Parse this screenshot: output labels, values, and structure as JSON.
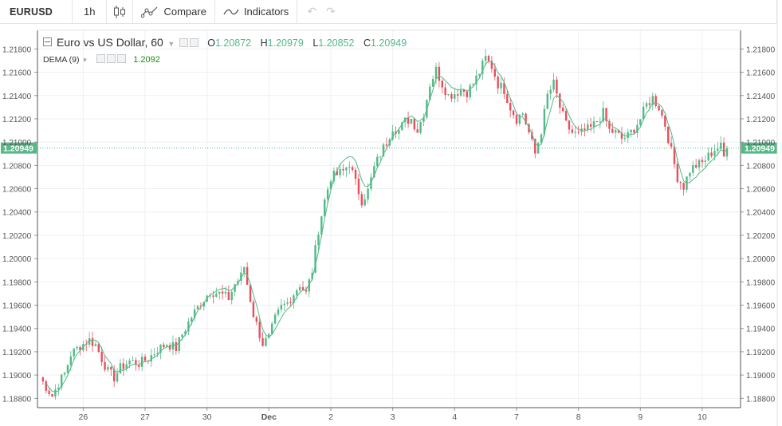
{
  "toolbar": {
    "symbol": "EURUSD",
    "interval": "1h",
    "compare_label": "Compare",
    "indicators_label": "Indicators",
    "icons": [
      "candlestick-icon",
      "compare-icon",
      "indicators-icon",
      "undo-icon",
      "redo-icon"
    ]
  },
  "legend": {
    "title": "Euro vs US Dollar, 60",
    "o_label": "O",
    "o_value": "1.20872",
    "h_label": "H",
    "h_value": "1.20979",
    "l_label": "L",
    "l_value": "1.20852",
    "c_label": "C",
    "c_value": "1.20949",
    "indicator_name": "DEMA (9)",
    "indicator_value": "1.2092"
  },
  "colors": {
    "up": "#53b987",
    "down": "#eb4d5c",
    "dema": "#53b987",
    "last_price_bg": "#53b987",
    "grid": "#eef0f2"
  },
  "chart_data": {
    "type": "candlestick",
    "title": "Euro vs US Dollar, 60",
    "y_ticks": [
      "1.21800",
      "1.21600",
      "1.21400",
      "1.21200",
      "1.21000",
      "1.20800",
      "1.20600",
      "1.20400",
      "1.20200",
      "1.20000",
      "1.19800",
      "1.19600",
      "1.19400",
      "1.19200",
      "1.19000",
      "1.18800"
    ],
    "ylim": [
      1.1872,
      1.2196
    ],
    "x_ticks": [
      "26",
      "27",
      "30",
      "Dec",
      "2",
      "3",
      "4",
      "7",
      "8",
      "9",
      "10"
    ],
    "last_price": 1.20949,
    "last_price_label": "1.20949",
    "grid": true,
    "close_path": [
      [
        0,
        1.1898
      ],
      [
        2,
        1.189
      ],
      [
        4,
        1.1882
      ],
      [
        6,
        1.1893
      ],
      [
        8,
        1.1901
      ],
      [
        10,
        1.1918
      ],
      [
        13,
        1.1925
      ],
      [
        16,
        1.193
      ],
      [
        18,
        1.1926
      ],
      [
        20,
        1.1914
      ],
      [
        22,
        1.1903
      ],
      [
        24,
        1.1898
      ],
      [
        26,
        1.1906
      ],
      [
        29,
        1.1912
      ],
      [
        32,
        1.191
      ],
      [
        35,
        1.1914
      ],
      [
        38,
        1.1922
      ],
      [
        41,
        1.1927
      ],
      [
        44,
        1.1923
      ],
      [
        46,
        1.1935
      ],
      [
        49,
        1.195
      ],
      [
        52,
        1.1962
      ],
      [
        55,
        1.1972
      ],
      [
        58,
        1.197
      ],
      [
        61,
        1.1966
      ],
      [
        63,
        1.1978
      ],
      [
        65,
        1.1985
      ],
      [
        66,
        1.1993
      ],
      [
        67,
        1.1978
      ],
      [
        69,
        1.1952
      ],
      [
        71,
        1.1935
      ],
      [
        72,
        1.1927
      ],
      [
        74,
        1.1932
      ],
      [
        76,
        1.1948
      ],
      [
        78,
        1.1958
      ],
      [
        80,
        1.1962
      ],
      [
        82,
        1.197
      ],
      [
        84,
        1.1978
      ],
      [
        86,
        1.197
      ],
      [
        88,
        1.199
      ],
      [
        90,
        1.2025
      ],
      [
        92,
        1.205
      ],
      [
        94,
        1.207
      ],
      [
        96,
        1.2072
      ],
      [
        98,
        1.2075
      ],
      [
        100,
        1.2082
      ],
      [
        102,
        1.2065
      ],
      [
        104,
        1.205
      ],
      [
        106,
        1.2058
      ],
      [
        108,
        1.2078
      ],
      [
        110,
        1.209
      ],
      [
        112,
        1.21
      ],
      [
        114,
        1.2113
      ],
      [
        116,
        1.211
      ],
      [
        118,
        1.2118
      ],
      [
        120,
        1.212
      ],
      [
        122,
        1.211
      ],
      [
        124,
        1.2125
      ],
      [
        126,
        1.215
      ],
      [
        128,
        1.2162
      ],
      [
        130,
        1.215
      ],
      [
        132,
        1.214
      ],
      [
        134,
        1.2142
      ],
      [
        136,
        1.2145
      ],
      [
        138,
        1.2143
      ],
      [
        140,
        1.215
      ],
      [
        142,
        1.216
      ],
      [
        144,
        1.2172
      ],
      [
        146,
        1.2165
      ],
      [
        148,
        1.215
      ],
      [
        150,
        1.2145
      ],
      [
        152,
        1.213
      ],
      [
        154,
        1.212
      ],
      [
        156,
        1.2125
      ],
      [
        158,
        1.2108
      ],
      [
        160,
        1.209
      ],
      [
        162,
        1.211
      ],
      [
        164,
        1.214
      ],
      [
        166,
        1.215
      ],
      [
        168,
        1.213
      ],
      [
        170,
        1.2115
      ],
      [
        172,
        1.2108
      ],
      [
        174,
        1.2106
      ],
      [
        176,
        1.211
      ],
      [
        178,
        1.2112
      ],
      [
        180,
        1.2118
      ],
      [
        182,
        1.2125
      ],
      [
        184,
        1.211
      ],
      [
        186,
        1.2108
      ],
      [
        188,
        1.2103
      ],
      [
        190,
        1.2105
      ],
      [
        192,
        1.2112
      ],
      [
        194,
        1.212
      ],
      [
        196,
        1.2132
      ],
      [
        198,
        1.2138
      ],
      [
        200,
        1.213
      ],
      [
        202,
        1.2115
      ],
      [
        204,
        1.2092
      ],
      [
        206,
        1.207
      ],
      [
        208,
        1.2062
      ],
      [
        210,
        1.2076
      ],
      [
        212,
        1.208
      ],
      [
        214,
        1.2082
      ],
      [
        216,
        1.2088
      ],
      [
        218,
        1.2094
      ],
      [
        220,
        1.2096
      ],
      [
        221,
        1.2087
      ],
      [
        222,
        1.2095
      ]
    ],
    "series": [
      {
        "name": "DEMA (9)",
        "type": "line"
      }
    ]
  }
}
